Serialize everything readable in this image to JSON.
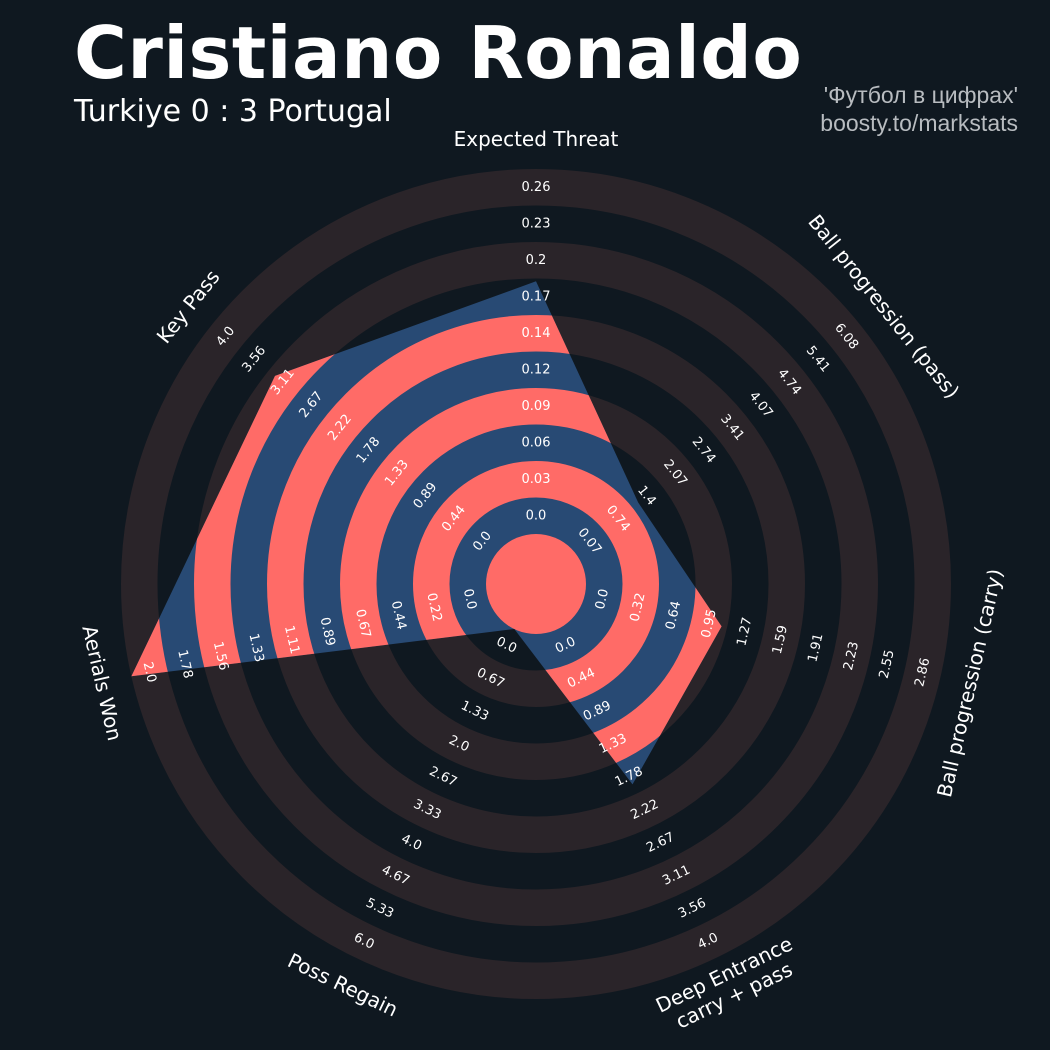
{
  "header": {
    "title": "Cristiano Ronaldo",
    "subtitle": "Turkiye 0 : 3 Portugal",
    "credit_line1": "'Футбол в цифрах'",
    "credit_line2": "boosty.to/markstats"
  },
  "colors": {
    "background": "#0f1820",
    "ring_band": "#2a2429",
    "player_fill": "#284a74",
    "ring_highlight": "#ff6b67",
    "text": "#ffffff"
  },
  "chart_data": {
    "type": "radar",
    "title": "Cristiano Ronaldo",
    "subtitle": "Turkiye 0 : 3 Portugal",
    "params": [
      {
        "label": "Expected Threat",
        "ticks": [
          "0.0",
          "0.03",
          "0.06",
          "0.09",
          "0.12",
          "0.14",
          "0.17",
          "0.2",
          "0.23",
          "0.26"
        ],
        "min": 0.0,
        "max": 0.26,
        "value": 0.18
      },
      {
        "label": "Ball progression (pass)",
        "ticks": [
          "0.07",
          "0.74",
          "1.4",
          "2.07",
          "2.74",
          "3.41",
          "4.07",
          "4.74",
          "5.41",
          "6.08"
        ],
        "min": 0.07,
        "max": 6.08,
        "value": 1.4
      },
      {
        "label": "Ball progression (carry)",
        "ticks": [
          "0.0",
          "0.32",
          "0.64",
          "0.95",
          "1.27",
          "1.59",
          "1.91",
          "2.23",
          "2.55",
          "2.86"
        ],
        "min": 0.0,
        "max": 2.86,
        "value": 1.1
      },
      {
        "label": "Deep Entrance\ncarry + pass",
        "ticks": [
          "0.0",
          "0.44",
          "0.89",
          "1.33",
          "1.78",
          "2.22",
          "2.67",
          "3.11",
          "3.56",
          "4.0"
        ],
        "min": 0.0,
        "max": 4.0,
        "value": 1.89
      },
      {
        "label": "Poss Regain",
        "ticks": [
          "0.0",
          "0.67",
          "1.33",
          "2.0",
          "2.67",
          "3.33",
          "4.0",
          "4.67",
          "5.33",
          "6.0"
        ],
        "min": 0.0,
        "max": 6.0,
        "value": 0.0
      },
      {
        "label": "Aerials Won",
        "ticks": [
          "0.0",
          "0.22",
          "0.44",
          "0.67",
          "0.89",
          "1.11",
          "1.33",
          "1.56",
          "1.78",
          "2.0"
        ],
        "min": 0.0,
        "max": 2.0,
        "value": 2.0
      },
      {
        "label": "Key Pass",
        "ticks": [
          "0.0",
          "0.44",
          "0.89",
          "1.33",
          "1.78",
          "2.22",
          "2.67",
          "3.11",
          "3.56",
          "4.0"
        ],
        "min": 0.0,
        "max": 4.0,
        "value": 3.11
      }
    ]
  }
}
